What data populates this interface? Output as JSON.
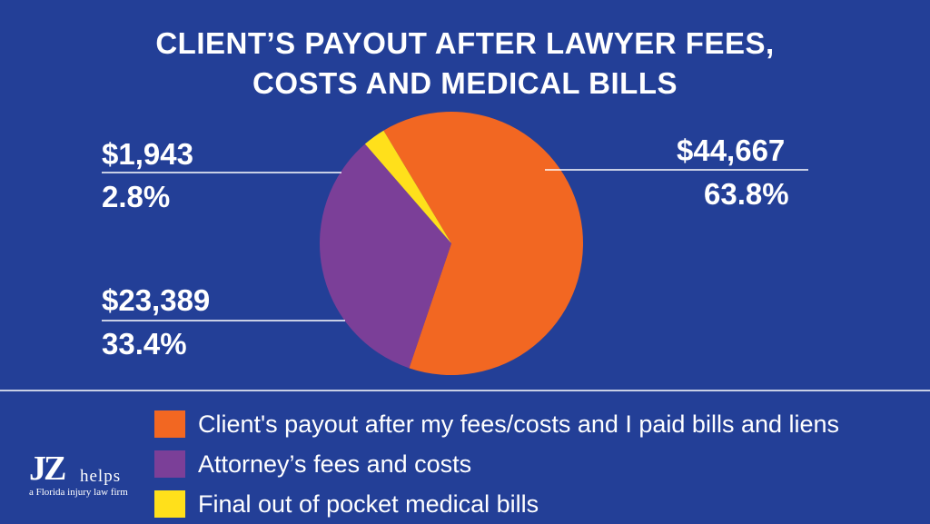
{
  "title": {
    "line1": "CLIENT’S PAYOUT AFTER LAWYER FEES,",
    "line2": "COSTS AND MEDICAL BILLS"
  },
  "chart_data": {
    "type": "pie",
    "title": "CLIENT’S PAYOUT AFTER LAWYER FEES, COSTS AND MEDICAL BILLS",
    "slices": [
      {
        "name": "Client's payout after my fees/costs and I paid bills and liens",
        "value": 44667,
        "value_label": "$44,667",
        "percent": 63.8,
        "percent_label": "63.8%",
        "color": "#f26722"
      },
      {
        "name": "Attorney’s fees and costs",
        "value": 23389,
        "value_label": "$23,389",
        "percent": 33.4,
        "percent_label": "33.4%",
        "color": "#7b3f98"
      },
      {
        "name": "Final out of pocket medical bills",
        "value": 1943,
        "value_label": "$1,943",
        "percent": 2.8,
        "percent_label": "2.8%",
        "color": "#ffe01b"
      }
    ],
    "legend_position": "bottom"
  },
  "logo": {
    "brand": "JZ",
    "helps": "helps",
    "tagline": "a Florida injury law firm"
  },
  "colors": {
    "background": "#233f97",
    "text": "#ffffff"
  }
}
